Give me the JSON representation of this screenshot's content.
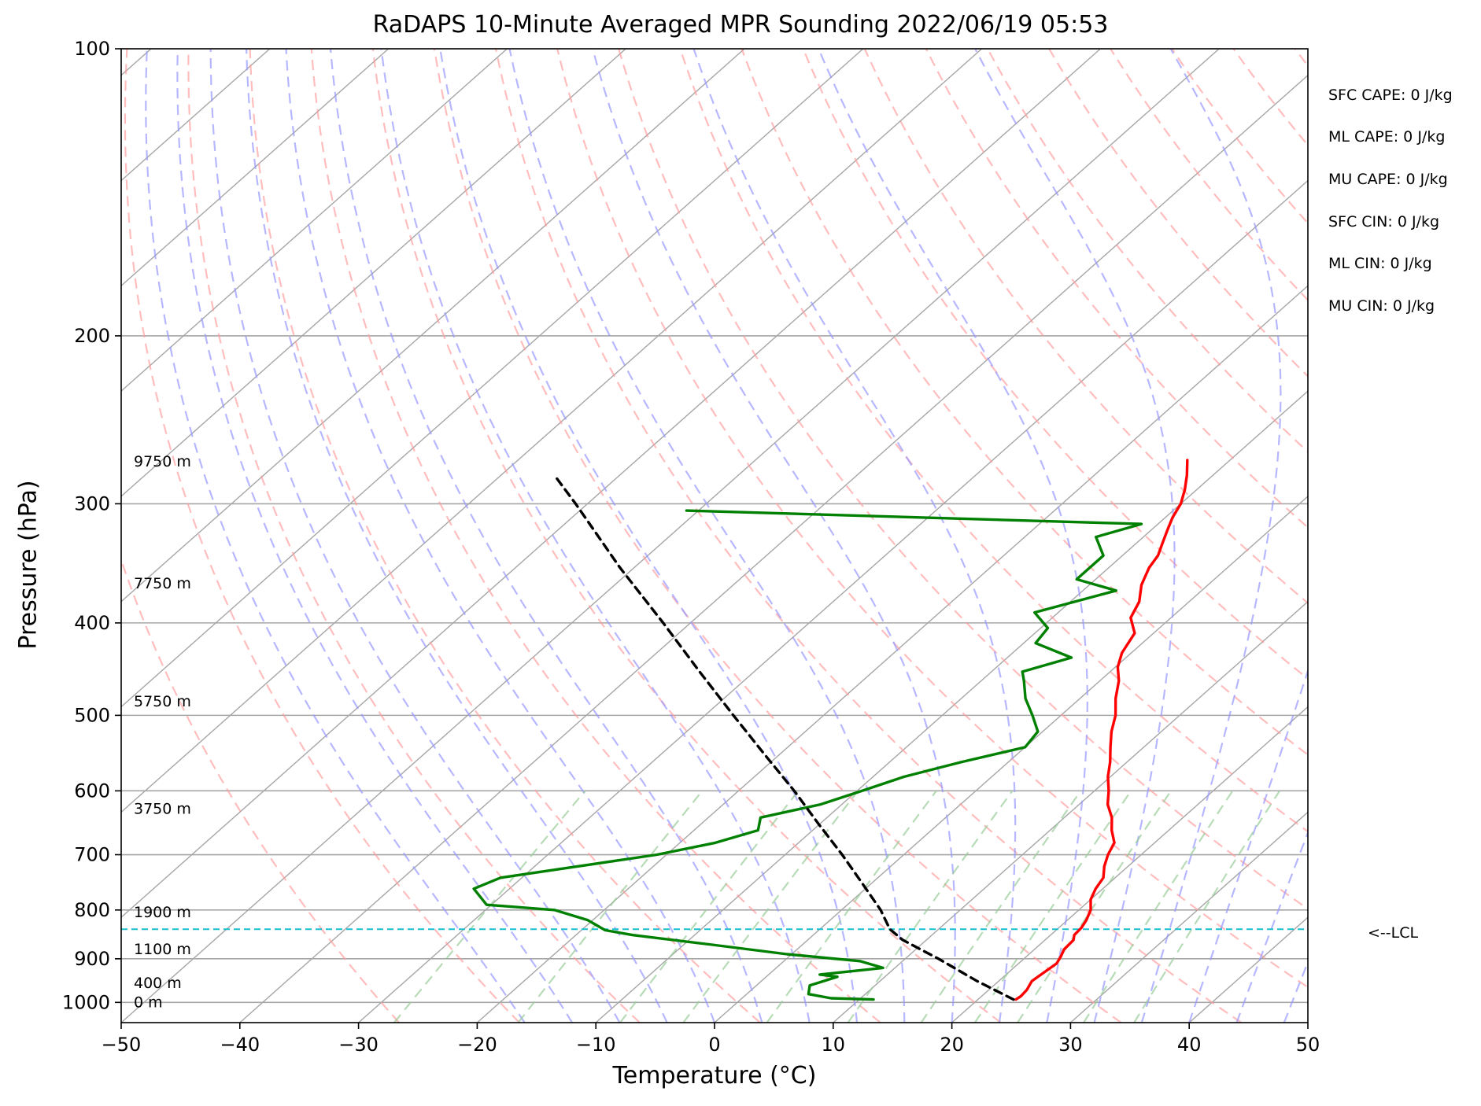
{
  "chart_data": {
    "type": "line",
    "title": "RaDAPS 10-Minute Averaged MPR Sounding 2022/06/19 05:53",
    "xlabel": "Temperature (°C)",
    "ylabel": "Pressure (hPa)",
    "xlim": [
      -50,
      50
    ],
    "ylim": [
      1050,
      100
    ],
    "y_scale": "log",
    "x_ticks": [
      -50,
      -40,
      -30,
      -20,
      -10,
      0,
      10,
      20,
      30,
      40,
      50
    ],
    "x_tick_labels": [
      "−50",
      "−40",
      "−30",
      "−20",
      "−10",
      "0",
      "10",
      "20",
      "30",
      "40",
      "50"
    ],
    "y_ticks": [
      100,
      200,
      300,
      400,
      500,
      600,
      700,
      800,
      900,
      1000
    ],
    "y_tick_labels": [
      "100",
      "200",
      "300",
      "400",
      "500",
      "600",
      "700",
      "800",
      "900",
      "1000"
    ],
    "grid": true,
    "skew_deg_per_log_unit": 90.6,
    "colors": {
      "temperature": "#ff0000",
      "dewpoint": "#008000",
      "parcel": "#000000",
      "lcl": "#17becf",
      "dry_adiabats": "#ff9999",
      "moist_adiabats": "#9999ff",
      "mixing_ratio": "#99cc99",
      "isotherms": "#a6a6a6"
    },
    "series": [
      {
        "key": "temperature",
        "points": [
          [
            993,
            23.2
          ],
          [
            985,
            23.3
          ],
          [
            970,
            23.2
          ],
          [
            950,
            22.8
          ],
          [
            930,
            23.0
          ],
          [
            910,
            23.2
          ],
          [
            895,
            22.9
          ],
          [
            880,
            22.5
          ],
          [
            860,
            22.4
          ],
          [
            850,
            22.0
          ],
          [
            835,
            21.9
          ],
          [
            820,
            21.6
          ],
          [
            800,
            21.0
          ],
          [
            780,
            20.0
          ],
          [
            760,
            19.4
          ],
          [
            740,
            19.0
          ],
          [
            720,
            18.0
          ],
          [
            700,
            17.2
          ],
          [
            680,
            16.6
          ],
          [
            660,
            15.2
          ],
          [
            640,
            14.0
          ],
          [
            620,
            12.4
          ],
          [
            600,
            11.2
          ],
          [
            580,
            9.8
          ],
          [
            560,
            8.6
          ],
          [
            540,
            7.2
          ],
          [
            520,
            5.8
          ],
          [
            500,
            4.6
          ],
          [
            480,
            3.0
          ],
          [
            460,
            1.6
          ],
          [
            445,
            0.2
          ],
          [
            430,
            -0.8
          ],
          [
            410,
            -1.6
          ],
          [
            395,
            -3.4
          ],
          [
            380,
            -4.2
          ],
          [
            365,
            -5.6
          ],
          [
            350,
            -6.6
          ],
          [
            340,
            -7.0
          ],
          [
            330,
            -7.8
          ],
          [
            320,
            -8.6
          ],
          [
            310,
            -9.4
          ],
          [
            300,
            -10.0
          ],
          [
            290,
            -11.0
          ],
          [
            280,
            -12.2
          ],
          [
            270,
            -13.6
          ]
        ]
      },
      {
        "key": "dewpoint",
        "points": [
          [
            993,
            11.2
          ],
          [
            990,
            7.5
          ],
          [
            980,
            5.2
          ],
          [
            960,
            4.5
          ],
          [
            940,
            6.0
          ],
          [
            935,
            4.3
          ],
          [
            920,
            9.0
          ],
          [
            905,
            6.4
          ],
          [
            890,
            -0.4
          ],
          [
            870,
            -7.6
          ],
          [
            850,
            -15.2
          ],
          [
            840,
            -18.0
          ],
          [
            820,
            -20.4
          ],
          [
            800,
            -24.2
          ],
          [
            790,
            -30.4
          ],
          [
            760,
            -33.0
          ],
          [
            740,
            -31.8
          ],
          [
            720,
            -26.4
          ],
          [
            700,
            -20.8
          ],
          [
            680,
            -17.0
          ],
          [
            660,
            -14.6
          ],
          [
            640,
            -15.6
          ],
          [
            620,
            -11.8
          ],
          [
            600,
            -9.6
          ],
          [
            580,
            -7.4
          ],
          [
            560,
            -4.0
          ],
          [
            540,
            0.0
          ],
          [
            520,
            -0.4
          ],
          [
            500,
            -2.4
          ],
          [
            480,
            -4.6
          ],
          [
            460,
            -6.4
          ],
          [
            450,
            -7.4
          ],
          [
            435,
            -4.6
          ],
          [
            420,
            -9.0
          ],
          [
            405,
            -9.4
          ],
          [
            390,
            -12.0
          ],
          [
            370,
            -7.2
          ],
          [
            360,
            -11.6
          ],
          [
            340,
            -11.6
          ],
          [
            325,
            -14.0
          ],
          [
            315,
            -11.4
          ],
          [
            305,
            -51.0
          ]
        ]
      },
      {
        "key": "parcel",
        "points": [
          [
            993,
            23.0
          ],
          [
            950,
            18.2
          ],
          [
            900,
            12.8
          ],
          [
            860,
            8.0
          ],
          [
            838,
            5.9
          ],
          [
            800,
            3.3
          ],
          [
            750,
            -0.8
          ],
          [
            700,
            -5.2
          ],
          [
            650,
            -10.1
          ],
          [
            600,
            -15.3
          ],
          [
            550,
            -21.2
          ],
          [
            500,
            -27.6
          ],
          [
            450,
            -34.6
          ],
          [
            400,
            -42.3
          ],
          [
            350,
            -51.2
          ],
          [
            300,
            -61.0
          ],
          [
            280,
            -65.5
          ]
        ]
      }
    ],
    "lcl_pressure": 838,
    "lcl_label": "<--LCL",
    "height_labels": [
      {
        "p": 1000,
        "text": "0 m"
      },
      {
        "p": 955,
        "text": "400 m"
      },
      {
        "p": 880,
        "text": "1100 m"
      },
      {
        "p": 805,
        "text": "1900 m"
      },
      {
        "p": 627,
        "text": "3750 m"
      },
      {
        "p": 484,
        "text": "5750 m"
      },
      {
        "p": 364,
        "text": "7750 m"
      },
      {
        "p": 271,
        "text": "9750 m"
      }
    ],
    "stats": [
      "SFC CAPE: 0 J/kg",
      "ML CAPE: 0 J/kg",
      "MU CAPE: 0 J/kg",
      "SFC CIN: 0 J/kg",
      "ML CIN: 0 J/kg",
      "MU CIN: 0 J/kg"
    ]
  }
}
